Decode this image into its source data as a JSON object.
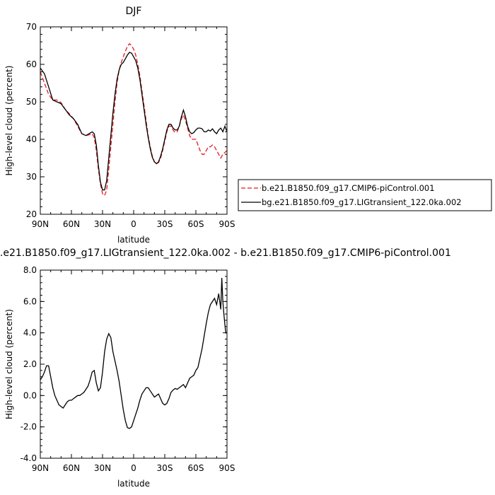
{
  "chart_data": [
    {
      "type": "line",
      "title": "DJF",
      "xlabel": "latitude",
      "ylabel": "High-level cloud (percent)",
      "xlim": [
        90,
        -90
      ],
      "ylim": [
        20,
        70
      ],
      "xticks": [
        90,
        60,
        30,
        0,
        -30,
        -60,
        -90
      ],
      "xtick_labels": [
        "90N",
        "60N",
        "30N",
        "0",
        "30S",
        "60S",
        "90S"
      ],
      "yticks": [
        20,
        30,
        40,
        50,
        60,
        70
      ],
      "ytick_labels": [
        "20",
        "30",
        "40",
        "50",
        "60",
        "70"
      ],
      "grid": false,
      "legend_position": "right",
      "series": [
        {
          "name": "b.e21.B1850.f09_g17.CMIP6-piControl.001",
          "color": "#e41a1c",
          "dash": "dashed",
          "x": [
            90,
            86,
            82,
            78,
            74,
            70,
            66,
            62,
            58,
            54,
            50,
            46,
            43,
            40,
            38,
            36,
            34,
            32,
            30,
            28,
            26,
            24,
            22,
            20,
            18,
            16,
            14,
            12,
            10,
            8,
            6,
            4,
            2,
            0,
            -2,
            -4,
            -6,
            -8,
            -10,
            -12,
            -14,
            -16,
            -18,
            -20,
            -22,
            -24,
            -26,
            -28,
            -30,
            -32,
            -34,
            -36,
            -38,
            -40,
            -42,
            -44,
            -46,
            -48,
            -50,
            -52,
            -54,
            -56,
            -58,
            -60,
            -62,
            -64,
            -66,
            -68,
            -70,
            -72,
            -74,
            -76,
            -78,
            -80,
            -82,
            -84,
            -86,
            -88,
            -90
          ],
          "y": [
            58,
            55,
            52,
            50.5,
            50.5,
            49.8,
            48,
            46.8,
            45.5,
            43.5,
            41.5,
            41,
            41.2,
            41.5,
            40.5,
            37,
            32,
            28,
            25.5,
            25,
            26.5,
            32,
            38,
            44,
            50,
            55,
            58.5,
            60.5,
            62,
            63.5,
            64.8,
            65.5,
            65,
            64,
            62.5,
            60,
            57,
            53,
            49,
            45,
            41,
            38,
            35.5,
            34,
            33.5,
            33.8,
            35,
            37,
            39.5,
            42,
            43.5,
            43.5,
            42.5,
            41.8,
            42,
            43.5,
            45.5,
            46.5,
            45,
            43,
            41,
            40,
            40,
            40,
            38.5,
            37,
            36,
            36,
            37,
            38,
            38,
            38.5,
            38,
            37,
            36,
            35,
            36,
            36.5,
            37
          ]
        },
        {
          "name": "bg.e21.B1850.f09_g17.LIGtransient_122.0ka.002",
          "color": "#000000",
          "dash": "solid",
          "x": [
            90,
            86,
            82,
            78,
            74,
            70,
            66,
            62,
            58,
            54,
            50,
            46,
            43,
            40,
            38,
            36,
            34,
            32,
            30,
            28,
            26,
            24,
            22,
            20,
            18,
            16,
            14,
            12,
            10,
            8,
            6,
            4,
            2,
            0,
            -2,
            -4,
            -6,
            -8,
            -10,
            -12,
            -14,
            -16,
            -18,
            -20,
            -22,
            -24,
            -26,
            -28,
            -30,
            -32,
            -34,
            -36,
            -38,
            -40,
            -42,
            -44,
            -46,
            -48,
            -50,
            -52,
            -54,
            -56,
            -58,
            -60,
            -62,
            -64,
            -66,
            -68,
            -70,
            -72,
            -74,
            -76,
            -78,
            -80,
            -82,
            -84,
            -86,
            -88,
            -90
          ],
          "y": [
            59,
            57.5,
            54,
            50.5,
            50,
            49.5,
            48,
            46.5,
            45.5,
            44,
            41.5,
            41,
            41.5,
            42,
            41.5,
            38.5,
            33,
            28.5,
            26.5,
            26.5,
            29,
            35,
            41,
            47,
            52,
            56,
            58.5,
            60,
            60.5,
            61.5,
            62.5,
            63.2,
            63,
            62,
            61,
            59,
            56,
            52,
            48,
            44,
            40.5,
            37.5,
            35.2,
            34,
            33.5,
            34,
            35.5,
            37.5,
            40,
            42.5,
            44,
            44,
            43,
            42.5,
            42.5,
            43.5,
            46,
            47.8,
            46,
            43.5,
            42,
            41.5,
            41.8,
            42.5,
            43,
            43,
            42.8,
            42,
            42,
            42.5,
            42.2,
            42.8,
            42,
            41.5,
            42.5,
            43,
            42,
            43.5,
            42
          ]
        }
      ]
    },
    {
      "type": "line",
      "title": "bg.e21.B1850.f09_g17.LIGtransient_122.0ka.002 - b.e21.B1850.f09_g17.CMIP6-piControl.001",
      "xlabel": "latitude",
      "ylabel": "High-level cloud (percent)",
      "xlim": [
        90,
        -90
      ],
      "ylim": [
        -4,
        8
      ],
      "xticks": [
        90,
        60,
        30,
        0,
        -30,
        -60,
        -90
      ],
      "xtick_labels": [
        "90N",
        "60N",
        "30N",
        "0",
        "30S",
        "60S",
        "90S"
      ],
      "yticks": [
        -4,
        -2,
        0,
        2,
        4,
        6,
        8
      ],
      "ytick_labels": [
        "-4.0",
        "-2.0",
        "0.0",
        "2.0",
        "4.0",
        "6.0",
        "8.0"
      ],
      "grid": false,
      "series": [
        {
          "color": "#000000",
          "dash": "solid",
          "x": [
            90,
            88,
            86,
            84,
            82,
            80,
            78,
            76,
            74,
            72,
            70,
            68,
            66,
            64,
            62,
            60,
            58,
            56,
            54,
            52,
            50,
            48,
            46,
            44,
            42,
            40,
            38,
            36,
            34,
            32,
            30,
            28,
            26,
            24,
            22,
            20,
            18,
            16,
            14,
            12,
            10,
            8,
            6,
            4,
            2,
            0,
            -2,
            -4,
            -6,
            -8,
            -10,
            -12,
            -14,
            -16,
            -18,
            -20,
            -22,
            -24,
            -26,
            -28,
            -30,
            -32,
            -34,
            -36,
            -38,
            -40,
            -42,
            -44,
            -46,
            -48,
            -50,
            -52,
            -54,
            -56,
            -58,
            -60,
            -62,
            -64,
            -66,
            -68,
            -70,
            -72,
            -74,
            -76,
            -78,
            -80,
            -82,
            -84,
            -85,
            -86,
            -87,
            -88,
            -88.5,
            -89,
            -89.5,
            -90
          ],
          "y": [
            1.0,
            1.2,
            1.5,
            1.9,
            1.9,
            1.2,
            0.5,
            0.0,
            -0.3,
            -0.6,
            -0.7,
            -0.8,
            -0.6,
            -0.4,
            -0.3,
            -0.3,
            -0.2,
            -0.1,
            0.0,
            0.0,
            0.1,
            0.2,
            0.4,
            0.6,
            1.0,
            1.5,
            1.6,
            0.8,
            0.3,
            0.5,
            1.5,
            2.8,
            3.6,
            3.95,
            3.7,
            2.8,
            2.2,
            1.6,
            0.9,
            0.0,
            -0.9,
            -1.6,
            -2.05,
            -2.1,
            -2.0,
            -1.6,
            -1.2,
            -0.8,
            -0.3,
            0.1,
            0.3,
            0.5,
            0.5,
            0.3,
            0.1,
            -0.1,
            0.0,
            0.1,
            -0.2,
            -0.5,
            -0.6,
            -0.5,
            -0.2,
            0.2,
            0.35,
            0.45,
            0.4,
            0.5,
            0.6,
            0.7,
            0.5,
            0.8,
            1.1,
            1.2,
            1.3,
            1.6,
            1.8,
            2.4,
            3.0,
            3.8,
            4.6,
            5.3,
            5.8,
            6.0,
            6.2,
            5.8,
            6.5,
            5.5,
            7.5,
            6.0,
            5.2,
            4.5,
            4.2,
            4.0,
            4.0,
            4.0
          ]
        }
      ]
    }
  ]
}
